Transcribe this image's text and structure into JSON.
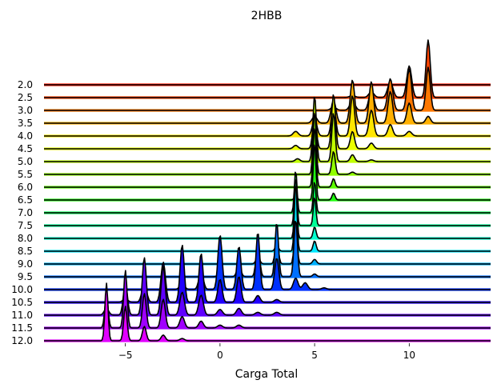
{
  "chart_data": {
    "type": "ridgeline",
    "title": "2HBB",
    "xlabel": "Carga Total",
    "ylabel": "",
    "xlim": [
      -9.3,
      14.3
    ],
    "xticks": [
      -5,
      0,
      5,
      10
    ],
    "xtick_labels": [
      "−5",
      "0",
      "5",
      "10"
    ],
    "colormap": "gist_rainbow (top red → bottom magenta)",
    "series": [
      {
        "label": "2.0",
        "color": "#ff1a00",
        "peaks": []
      },
      {
        "label": "2.5",
        "color": "#ff4500",
        "peaks": [
          [
            11,
            1.0,
            0.11
          ],
          [
            10,
            0.55,
            0.13
          ],
          [
            9,
            0.27,
            0.14
          ],
          [
            8,
            0.1,
            0.14
          ],
          [
            7,
            0.04,
            0.14
          ]
        ]
      },
      {
        "label": "3.0",
        "color": "#ff7800",
        "peaks": [
          [
            11,
            0.75,
            0.11
          ],
          [
            10,
            0.72,
            0.12
          ],
          [
            9,
            0.55,
            0.13
          ],
          [
            8,
            0.35,
            0.13
          ],
          [
            7,
            0.16,
            0.14
          ],
          [
            6,
            0.06,
            0.14
          ]
        ]
      },
      {
        "label": "3.5",
        "color": "#ffb000",
        "peaks": [
          [
            11,
            0.12,
            0.12
          ],
          [
            10,
            0.35,
            0.12
          ],
          [
            9,
            0.55,
            0.12
          ],
          [
            8,
            0.72,
            0.12
          ],
          [
            7,
            0.75,
            0.12
          ],
          [
            6,
            0.4,
            0.13
          ],
          [
            5,
            0.12,
            0.13
          ]
        ]
      },
      {
        "label": "4.0",
        "color": "#ffe600",
        "peaks": [
          [
            10,
            0.08,
            0.13
          ],
          [
            9,
            0.2,
            0.12
          ],
          [
            8,
            0.45,
            0.12
          ],
          [
            7,
            0.7,
            0.11
          ],
          [
            6,
            0.55,
            0.11
          ],
          [
            5,
            0.3,
            0.12
          ],
          [
            4,
            0.08,
            0.13
          ]
        ]
      },
      {
        "label": "4.5",
        "color": "#eaff00",
        "peaks": [
          [
            8,
            0.1,
            0.12
          ],
          [
            7,
            0.3,
            0.11
          ],
          [
            6,
            0.95,
            0.1
          ],
          [
            5,
            0.55,
            0.1
          ],
          [
            4,
            0.06,
            0.12
          ]
        ]
      },
      {
        "label": "5.0",
        "color": "#c0ff00",
        "peaks": [
          [
            8,
            0.03,
            0.12
          ],
          [
            7,
            0.12,
            0.11
          ],
          [
            6,
            0.85,
            0.09
          ],
          [
            5,
            1.15,
            0.09
          ],
          [
            4.1,
            0.05,
            0.12
          ]
        ]
      },
      {
        "label": "5.5",
        "color": "#90ff00",
        "peaks": [
          [
            7,
            0.04,
            0.11
          ],
          [
            6,
            0.4,
            0.09
          ],
          [
            5,
            1.1,
            0.08
          ]
        ]
      },
      {
        "label": "6.0",
        "color": "#5cff00",
        "peaks": [
          [
            6,
            0.15,
            0.08
          ],
          [
            5,
            1.05,
            0.08
          ]
        ]
      },
      {
        "label": "6.5",
        "color": "#20ff10",
        "peaks": [
          [
            6,
            0.12,
            0.08
          ],
          [
            5,
            1.0,
            0.07
          ],
          [
            4,
            0.05,
            0.09
          ]
        ]
      },
      {
        "label": "7.0",
        "color": "#00ff55",
        "peaks": [
          [
            5,
            0.55,
            0.07
          ],
          [
            4,
            0.75,
            0.07
          ]
        ]
      },
      {
        "label": "7.5",
        "color": "#00ff99",
        "peaks": [
          [
            5,
            0.5,
            0.07
          ],
          [
            4,
            0.85,
            0.07
          ]
        ]
      },
      {
        "label": "8.0",
        "color": "#00ffd0",
        "peaks": [
          [
            5,
            0.2,
            0.08
          ],
          [
            4,
            0.9,
            0.07
          ]
        ]
      },
      {
        "label": "8.5",
        "color": "#00e8ff",
        "peaks": [
          [
            5,
            0.18,
            0.08
          ],
          [
            4,
            1.2,
            0.07
          ],
          [
            3,
            0.1,
            0.09
          ]
        ]
      },
      {
        "label": "9.0",
        "color": "#00b0ff",
        "peaks": [
          [
            5,
            0.08,
            0.1
          ],
          [
            4,
            0.7,
            0.08
          ],
          [
            3,
            0.4,
            0.09
          ],
          [
            2,
            0.12,
            0.1
          ]
        ]
      },
      {
        "label": "9.5",
        "color": "#0070ff",
        "peaks": [
          [
            5,
            0.05,
            0.1
          ],
          [
            4,
            1.0,
            0.09
          ],
          [
            3,
            0.95,
            0.09
          ],
          [
            2,
            0.55,
            0.1
          ],
          [
            1,
            0.18,
            0.11
          ],
          [
            0,
            0.05,
            0.12
          ]
        ]
      },
      {
        "label": "10.0",
        "color": "#0030ff",
        "peaks": [
          [
            5.5,
            0.03,
            0.14
          ],
          [
            4.5,
            0.12,
            0.13
          ],
          [
            4,
            0.2,
            0.12
          ],
          [
            3,
            0.55,
            0.11
          ],
          [
            2,
            1.0,
            0.1
          ],
          [
            1,
            0.75,
            0.11
          ],
          [
            0,
            0.95,
            0.11
          ],
          [
            -1,
            0.3,
            0.12
          ],
          [
            -2,
            0.1,
            0.13
          ]
        ]
      },
      {
        "label": "10.5",
        "color": "#2000ff",
        "peaks": [
          [
            3,
            0.05,
            0.13
          ],
          [
            2,
            0.12,
            0.12
          ],
          [
            1,
            0.45,
            0.11
          ],
          [
            0,
            0.4,
            0.11
          ],
          [
            -1,
            0.85,
            0.11
          ],
          [
            -2,
            1.0,
            0.11
          ],
          [
            -3,
            0.7,
            0.12
          ],
          [
            -4,
            0.3,
            0.13
          ],
          [
            -5,
            0.06,
            0.14
          ]
        ]
      },
      {
        "label": "11.0",
        "color": "#6000ff",
        "peaks": [
          [
            3,
            0.05,
            0.14
          ],
          [
            2,
            0.05,
            0.14
          ],
          [
            1,
            0.12,
            0.13
          ],
          [
            0,
            0.1,
            0.13
          ],
          [
            -1,
            0.35,
            0.12
          ],
          [
            -2,
            0.4,
            0.12
          ],
          [
            -3,
            0.85,
            0.11
          ],
          [
            -4,
            1.0,
            0.11
          ],
          [
            -5,
            0.55,
            0.11
          ],
          [
            -6,
            0.12,
            0.12
          ]
        ]
      },
      {
        "label": "11.5",
        "color": "#a000ff",
        "peaks": [
          [
            1,
            0.05,
            0.13
          ],
          [
            0,
            0.05,
            0.13
          ],
          [
            -1,
            0.12,
            0.12
          ],
          [
            -2,
            0.2,
            0.12
          ],
          [
            -3,
            0.5,
            0.11
          ],
          [
            -4,
            0.6,
            0.1
          ],
          [
            -5,
            1.0,
            0.09
          ],
          [
            -6,
            0.55,
            0.09
          ]
        ]
      },
      {
        "label": "12.0",
        "color": "#e000ff",
        "peaks": [
          [
            -2,
            0.04,
            0.12
          ],
          [
            -3,
            0.1,
            0.11
          ],
          [
            -4,
            0.25,
            0.1
          ],
          [
            -5,
            0.6,
            0.09
          ],
          [
            -6,
            1.0,
            0.08
          ]
        ]
      }
    ]
  }
}
